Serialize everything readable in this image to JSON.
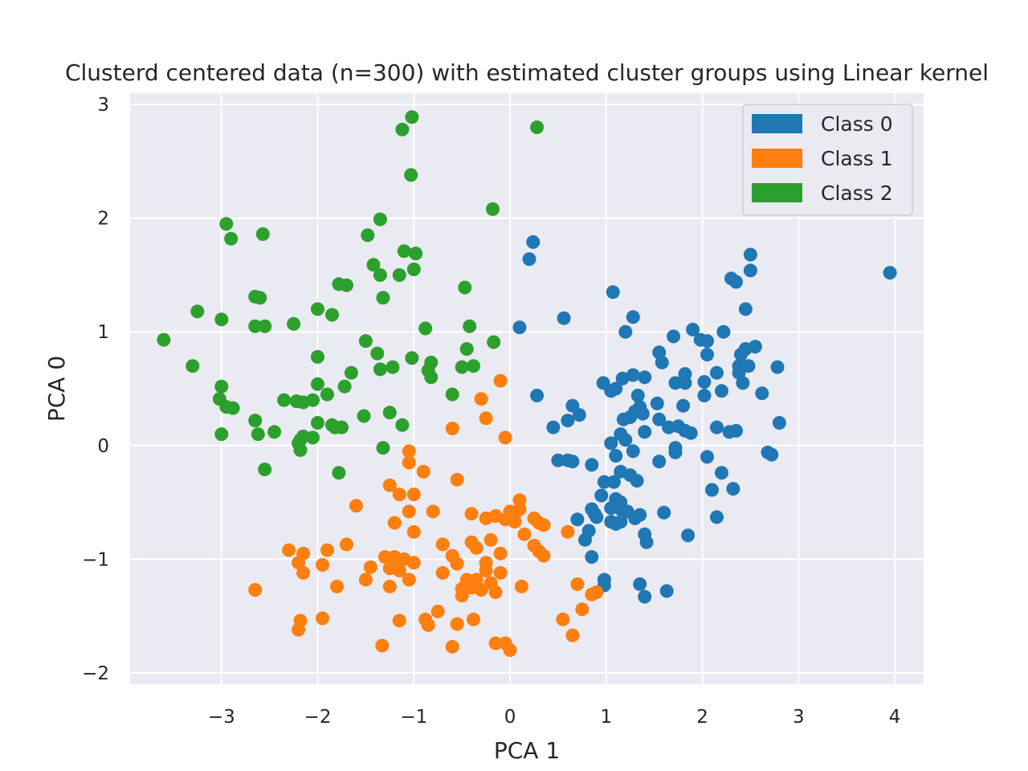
{
  "chart_data": {
    "type": "scatter",
    "title": "Clusterd centered data (n=300) with estimated cluster groups using Linear kernel",
    "xlabel": "PCA 1",
    "ylabel": "PCA 0",
    "xlim": [
      -3.95,
      4.3
    ],
    "ylim": [
      -2.1,
      3.1
    ],
    "xticks": [
      -3,
      -2,
      -1,
      0,
      1,
      2,
      3,
      4
    ],
    "yticks": [
      -2,
      -1,
      0,
      1,
      2,
      3
    ],
    "xtick_labels": [
      "−3",
      "−2",
      "−1",
      "0",
      "1",
      "2",
      "3",
      "4"
    ],
    "ytick_labels": [
      "−2",
      "−1",
      "0",
      "1",
      "2",
      "3"
    ],
    "grid": true,
    "legend_position": "top-right",
    "series": [
      {
        "name": "Class 0",
        "color": "#1f77b4",
        "points": [
          [
            3.95,
            1.52
          ],
          [
            2.5,
            1.68
          ],
          [
            2.5,
            1.54
          ],
          [
            2.3,
            1.47
          ],
          [
            2.35,
            1.44
          ],
          [
            2.45,
            1.2
          ],
          [
            1.07,
            1.35
          ],
          [
            0.56,
            1.12
          ],
          [
            1.28,
            1.13
          ],
          [
            1.9,
            1.02
          ],
          [
            1.2,
            1.0
          ],
          [
            2.22,
            1.0
          ],
          [
            1.7,
            0.96
          ],
          [
            1.98,
            0.93
          ],
          [
            2.05,
            0.92
          ],
          [
            2.4,
            0.8
          ],
          [
            2.45,
            0.85
          ],
          [
            2.55,
            0.87
          ],
          [
            2.05,
            0.8
          ],
          [
            1.55,
            0.82
          ],
          [
            1.58,
            0.73
          ],
          [
            2.38,
            0.7
          ],
          [
            2.48,
            0.7
          ],
          [
            2.78,
            0.69
          ],
          [
            1.28,
            0.62
          ],
          [
            1.4,
            0.6
          ],
          [
            1.17,
            0.59
          ],
          [
            1.82,
            0.63
          ],
          [
            2.15,
            0.64
          ],
          [
            2.38,
            0.64
          ],
          [
            0.97,
            0.55
          ],
          [
            1.05,
            0.48
          ],
          [
            1.1,
            0.5
          ],
          [
            1.72,
            0.55
          ],
          [
            1.82,
            0.55
          ],
          [
            2.02,
            0.56
          ],
          [
            2.42,
            0.55
          ],
          [
            0.28,
            0.44
          ],
          [
            1.33,
            0.44
          ],
          [
            2.02,
            0.44
          ],
          [
            2.2,
            0.48
          ],
          [
            2.62,
            0.46
          ],
          [
            0.65,
            0.35
          ],
          [
            0.72,
            0.27
          ],
          [
            1.18,
            0.23
          ],
          [
            1.3,
            0.3
          ],
          [
            1.35,
            0.34
          ],
          [
            1.53,
            0.37
          ],
          [
            1.8,
            0.35
          ],
          [
            0.6,
            0.22
          ],
          [
            0.45,
            0.16
          ],
          [
            1.25,
            0.25
          ],
          [
            1.38,
            0.28
          ],
          [
            1.55,
            0.23
          ],
          [
            2.15,
            0.16
          ],
          [
            2.28,
            0.12
          ],
          [
            2.35,
            0.13
          ],
          [
            2.8,
            0.2
          ],
          [
            1.15,
            0.1
          ],
          [
            1.4,
            0.12
          ],
          [
            1.65,
            0.16
          ],
          [
            1.75,
            0.17
          ],
          [
            1.82,
            0.13
          ],
          [
            1.88,
            0.11
          ],
          [
            1.05,
            0.02
          ],
          [
            1.2,
            0.05
          ],
          [
            1.28,
            -0.05
          ],
          [
            1.72,
            -0.02
          ],
          [
            2.05,
            -0.1
          ],
          [
            2.68,
            -0.06
          ],
          [
            2.72,
            -0.08
          ],
          [
            0.5,
            -0.13
          ],
          [
            0.6,
            -0.13
          ],
          [
            0.65,
            -0.14
          ],
          [
            0.85,
            -0.17
          ],
          [
            1.1,
            -0.09
          ],
          [
            1.55,
            -0.14
          ],
          [
            1.72,
            -0.06
          ],
          [
            1.15,
            -0.23
          ],
          [
            1.25,
            -0.26
          ],
          [
            1.32,
            -0.31
          ],
          [
            2.2,
            -0.24
          ],
          [
            0.98,
            -0.32
          ],
          [
            1.08,
            -0.32
          ],
          [
            2.1,
            -0.39
          ],
          [
            2.32,
            -0.38
          ],
          [
            0.95,
            -0.44
          ],
          [
            1.1,
            -0.47
          ],
          [
            1.15,
            -0.5
          ],
          [
            1.05,
            -0.55
          ],
          [
            1.15,
            -0.56
          ],
          [
            1.22,
            -0.58
          ],
          [
            1.35,
            -0.61
          ],
          [
            1.3,
            -0.64
          ],
          [
            1.6,
            -0.59
          ],
          [
            2.15,
            -0.63
          ],
          [
            0.85,
            -0.56
          ],
          [
            0.88,
            -0.6
          ],
          [
            0.9,
            -0.63
          ],
          [
            0.7,
            -0.65
          ],
          [
            1.05,
            -0.67
          ],
          [
            1.1,
            -0.69
          ],
          [
            1.15,
            -0.67
          ],
          [
            0.78,
            -0.83
          ],
          [
            0.82,
            -0.75
          ],
          [
            1.4,
            -0.78
          ],
          [
            1.42,
            -0.85
          ],
          [
            1.85,
            -0.79
          ],
          [
            0.85,
            -0.98
          ],
          [
            0.98,
            -1.18
          ],
          [
            0.98,
            -1.23
          ],
          [
            1.35,
            -1.22
          ],
          [
            1.4,
            -1.33
          ],
          [
            1.63,
            -1.28
          ],
          [
            0.2,
            1.64
          ],
          [
            0.24,
            1.79
          ],
          [
            0.1,
            1.04
          ]
        ]
      },
      {
        "name": "Class 1",
        "color": "#ff7f0e",
        "points": [
          [
            -0.1,
            0.57
          ],
          [
            -0.3,
            0.41
          ],
          [
            -0.25,
            0.24
          ],
          [
            -0.6,
            0.15
          ],
          [
            -0.05,
            0.07
          ],
          [
            -1.05,
            -0.05
          ],
          [
            -1.05,
            -0.15
          ],
          [
            -0.9,
            -0.23
          ],
          [
            -0.55,
            -0.3
          ],
          [
            -1.25,
            -0.35
          ],
          [
            -1.15,
            -0.43
          ],
          [
            -1.0,
            -0.43
          ],
          [
            -1.6,
            -0.53
          ],
          [
            -1.05,
            -0.58
          ],
          [
            -0.8,
            -0.58
          ],
          [
            -0.4,
            -0.6
          ],
          [
            -0.25,
            -0.64
          ],
          [
            -0.15,
            -0.62
          ],
          [
            0.0,
            -0.58
          ],
          [
            0.05,
            -0.6
          ],
          [
            0.1,
            -0.48
          ],
          [
            0.1,
            -0.56
          ],
          [
            -0.05,
            -0.65
          ],
          [
            0.05,
            -0.67
          ],
          [
            0.25,
            -0.64
          ],
          [
            0.3,
            -0.68
          ],
          [
            0.35,
            -0.7
          ],
          [
            -1.2,
            -0.68
          ],
          [
            -1.0,
            -0.76
          ],
          [
            0.15,
            -0.78
          ],
          [
            0.6,
            -0.76
          ],
          [
            -0.7,
            -0.87
          ],
          [
            -0.4,
            -0.85
          ],
          [
            -0.35,
            -0.9
          ],
          [
            -0.2,
            -0.83
          ],
          [
            0.25,
            -0.88
          ],
          [
            0.3,
            -0.93
          ],
          [
            0.35,
            -0.97
          ],
          [
            -1.7,
            -0.87
          ],
          [
            -2.3,
            -0.92
          ],
          [
            -1.9,
            -0.92
          ],
          [
            -2.15,
            -0.95
          ],
          [
            -1.3,
            -0.98
          ],
          [
            -1.2,
            -1.0
          ],
          [
            -1.2,
            -0.98
          ],
          [
            -1.1,
            -1.0
          ],
          [
            -0.6,
            -0.97
          ],
          [
            -0.25,
            -1.03
          ],
          [
            -0.1,
            -0.95
          ],
          [
            -2.2,
            -1.03
          ],
          [
            -1.95,
            -1.05
          ],
          [
            -1.45,
            -1.07
          ],
          [
            -1.25,
            -1.08
          ],
          [
            -1.15,
            -1.1
          ],
          [
            -1.0,
            -1.03
          ],
          [
            -0.55,
            -1.04
          ],
          [
            -0.25,
            -1.1
          ],
          [
            -0.1,
            -1.12
          ],
          [
            -2.15,
            -1.12
          ],
          [
            -1.5,
            -1.18
          ],
          [
            -1.05,
            -1.18
          ],
          [
            -0.7,
            -1.12
          ],
          [
            -0.45,
            -1.18
          ],
          [
            -0.35,
            -1.18
          ],
          [
            -0.2,
            -1.21
          ],
          [
            -0.3,
            -1.27
          ],
          [
            -2.65,
            -1.27
          ],
          [
            -1.8,
            -1.24
          ],
          [
            -1.25,
            -1.24
          ],
          [
            -0.5,
            -1.26
          ],
          [
            -0.5,
            -1.32
          ],
          [
            -0.4,
            -1.25
          ],
          [
            -0.15,
            -1.29
          ],
          [
            0.12,
            -1.24
          ],
          [
            0.7,
            -1.22
          ],
          [
            0.85,
            -1.31
          ],
          [
            0.9,
            -1.29
          ],
          [
            0.75,
            -1.44
          ],
          [
            -0.75,
            -1.46
          ],
          [
            -2.18,
            -1.54
          ],
          [
            -2.2,
            -1.62
          ],
          [
            -1.95,
            -1.52
          ],
          [
            -1.15,
            -1.54
          ],
          [
            -0.88,
            -1.53
          ],
          [
            -0.85,
            -1.58
          ],
          [
            -0.55,
            -1.57
          ],
          [
            -0.38,
            -1.53
          ],
          [
            0.55,
            -1.53
          ],
          [
            0.65,
            -1.67
          ],
          [
            -0.15,
            -1.74
          ],
          [
            -0.05,
            -1.74
          ],
          [
            0.0,
            -1.8
          ],
          [
            -1.33,
            -1.76
          ],
          [
            -0.6,
            -1.77
          ]
        ]
      },
      {
        "name": "Class 2",
        "color": "#2ca02c",
        "points": [
          [
            -1.02,
            2.89
          ],
          [
            -1.12,
            2.78
          ],
          [
            0.28,
            2.8
          ],
          [
            -1.03,
            2.38
          ],
          [
            -0.18,
            2.08
          ],
          [
            -2.95,
            1.95
          ],
          [
            -2.9,
            1.82
          ],
          [
            -2.57,
            1.86
          ],
          [
            -1.35,
            1.99
          ],
          [
            -1.48,
            1.85
          ],
          [
            -1.1,
            1.71
          ],
          [
            -0.98,
            1.69
          ],
          [
            -1.42,
            1.59
          ],
          [
            -1.35,
            1.5
          ],
          [
            -1.15,
            1.5
          ],
          [
            -1.0,
            1.55
          ],
          [
            -1.78,
            1.42
          ],
          [
            -1.7,
            1.41
          ],
          [
            -2.65,
            1.31
          ],
          [
            -2.6,
            1.3
          ],
          [
            -1.32,
            1.3
          ],
          [
            -0.47,
            1.39
          ],
          [
            -3.25,
            1.18
          ],
          [
            -2.0,
            1.2
          ],
          [
            -1.85,
            1.15
          ],
          [
            -3.0,
            1.11
          ],
          [
            -2.65,
            1.05
          ],
          [
            -2.55,
            1.05
          ],
          [
            -2.25,
            1.07
          ],
          [
            -0.88,
            1.03
          ],
          [
            -0.42,
            1.05
          ],
          [
            -3.6,
            0.93
          ],
          [
            -1.5,
            0.92
          ],
          [
            -1.38,
            0.81
          ],
          [
            -0.45,
            0.85
          ],
          [
            -0.17,
            0.91
          ],
          [
            -2.0,
            0.78
          ],
          [
            -1.02,
            0.77
          ],
          [
            -0.82,
            0.73
          ],
          [
            -3.3,
            0.7
          ],
          [
            -1.35,
            0.67
          ],
          [
            -1.22,
            0.69
          ],
          [
            -0.85,
            0.66
          ],
          [
            -0.5,
            0.69
          ],
          [
            -0.38,
            0.7
          ],
          [
            -1.65,
            0.64
          ],
          [
            -0.82,
            0.6
          ],
          [
            -3.0,
            0.52
          ],
          [
            -2.0,
            0.54
          ],
          [
            -1.72,
            0.52
          ],
          [
            -1.9,
            0.45
          ],
          [
            -0.6,
            0.45
          ],
          [
            -3.02,
            0.41
          ],
          [
            -2.35,
            0.4
          ],
          [
            -2.22,
            0.39
          ],
          [
            -2.15,
            0.38
          ],
          [
            -2.05,
            0.4
          ],
          [
            -2.95,
            0.34
          ],
          [
            -2.88,
            0.33
          ],
          [
            -1.52,
            0.26
          ],
          [
            -1.25,
            0.29
          ],
          [
            -2.65,
            0.22
          ],
          [
            -2.0,
            0.2
          ],
          [
            -1.85,
            0.18
          ],
          [
            -1.82,
            0.16
          ],
          [
            -1.75,
            0.16
          ],
          [
            -1.12,
            0.18
          ],
          [
            -3.0,
            0.1
          ],
          [
            -2.62,
            0.1
          ],
          [
            -2.45,
            0.12
          ],
          [
            -2.18,
            0.05
          ],
          [
            -2.15,
            0.08
          ],
          [
            -2.05,
            0.07
          ],
          [
            -2.2,
            0.02
          ],
          [
            -2.18,
            -0.04
          ],
          [
            -1.32,
            -0.02
          ],
          [
            -2.55,
            -0.21
          ],
          [
            -1.78,
            -0.24
          ]
        ]
      }
    ]
  }
}
